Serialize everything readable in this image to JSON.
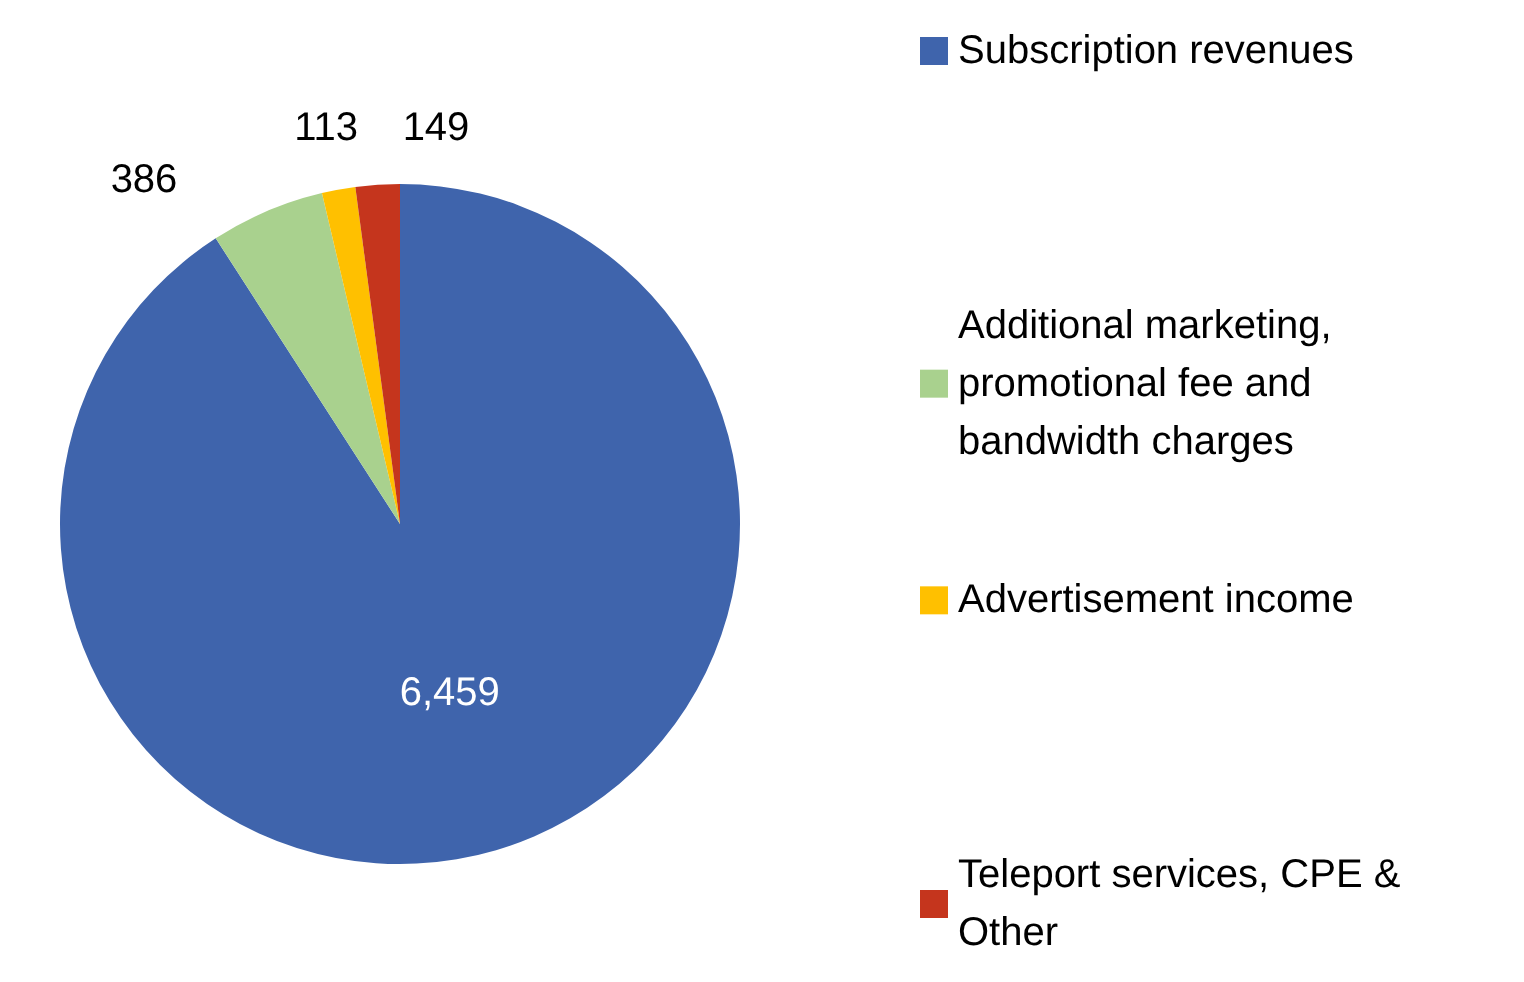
{
  "chart_data": {
    "type": "pie",
    "categories": [
      "Subscription revenues",
      "Additional marketing, promotional fee and bandwidth charges",
      "Advertisement income",
      "Teleport services, CPE & Other"
    ],
    "values": [
      6459,
      386,
      113,
      149
    ],
    "value_labels": [
      "6,459",
      "386",
      "113",
      "149"
    ],
    "colors": [
      "#3f64ac",
      "#a9d18e",
      "#ffc000",
      "#c5351d"
    ],
    "legend": "right"
  }
}
